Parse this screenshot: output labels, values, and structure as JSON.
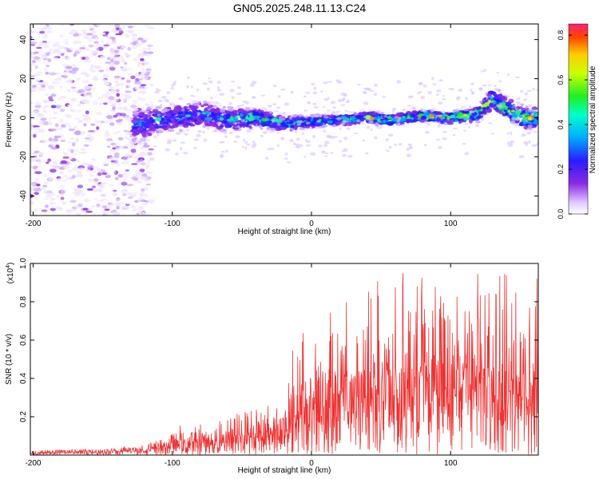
{
  "title": "GN05.2025.248.11.13.C24",
  "chart_data": [
    {
      "type": "heatmap",
      "name": "spectrogram",
      "xlabel": "Height of straight line (km)",
      "ylabel": "Frequency (Hz)",
      "xlim": [
        -202,
        163
      ],
      "ylim": [
        -50,
        48
      ],
      "xticks": [
        -200,
        -100,
        0,
        100
      ],
      "yticks": [
        -40,
        -20,
        0,
        20,
        40
      ],
      "xtick_labels": [
        "-200",
        "-100",
        "0",
        "100"
      ],
      "ytick_labels": [
        "-40",
        "-20",
        "0",
        "20",
        "40"
      ],
      "colorbar": {
        "label": "Normalized spectral amplitude",
        "range": [
          0.0,
          0.85
        ],
        "ticks": [
          0.0,
          0.2,
          0.4,
          0.6,
          0.8
        ],
        "tick_labels": [
          "0.0",
          "0.2",
          "0.4",
          "0.6",
          "0.8"
        ]
      },
      "signal_track": {
        "description_points_height_km": [
          -130,
          -120,
          -100,
          -80,
          -60,
          -40,
          -20,
          0,
          20,
          40,
          60,
          80,
          100,
          120,
          130,
          140,
          150,
          163
        ],
        "center_frequency_hz": [
          -4,
          -3,
          0,
          2,
          -1,
          0,
          -3,
          -2,
          -1,
          0,
          -1,
          1,
          0,
          2,
          10,
          5,
          0,
          0
        ],
        "band_halfwidth_hz": [
          8,
          8,
          7,
          7,
          6,
          5,
          4,
          3,
          3,
          3,
          3,
          3,
          3,
          4,
          5,
          6,
          6,
          5
        ]
      },
      "noise_region_height_km": [
        -202,
        -115
      ]
    },
    {
      "type": "line",
      "name": "snr",
      "xlabel": "Height of straight line (km)",
      "ylabel": "SNR (10 * v/v)",
      "y_scale_label": "(x10^4)",
      "y_scale_base": "(x10",
      "y_scale_exp": "4",
      "xlim": [
        -202,
        163
      ],
      "ylim": [
        0,
        1.0
      ],
      "xticks": [
        -200,
        -100,
        0,
        100
      ],
      "yticks": [
        0.2,
        0.4,
        0.6,
        0.8,
        1.0
      ],
      "xtick_labels": [
        "-200",
        "-100",
        "0",
        "100"
      ],
      "ytick_labels": [
        "0.2",
        "0.4",
        "0.6",
        "0.8",
        "1.0"
      ],
      "color": "#ee3333",
      "envelope": {
        "height_km": [
          -202,
          -150,
          -120,
          -105,
          -100,
          -80,
          -60,
          -40,
          -20,
          -15,
          0,
          20,
          30,
          40,
          60,
          80,
          100,
          110,
          120,
          140,
          163
        ],
        "snr_max": [
          0.03,
          0.03,
          0.06,
          0.1,
          0.15,
          0.17,
          0.21,
          0.25,
          0.3,
          0.55,
          0.7,
          0.78,
          0.92,
          0.92,
          0.96,
          0.93,
          0.93,
          1.0,
          0.95,
          0.97,
          0.95
        ],
        "snr_typical": [
          0.015,
          0.02,
          0.03,
          0.05,
          0.07,
          0.08,
          0.09,
          0.11,
          0.14,
          0.22,
          0.3,
          0.36,
          0.4,
          0.42,
          0.42,
          0.43,
          0.46,
          0.48,
          0.46,
          0.42,
          0.4
        ]
      }
    }
  ]
}
